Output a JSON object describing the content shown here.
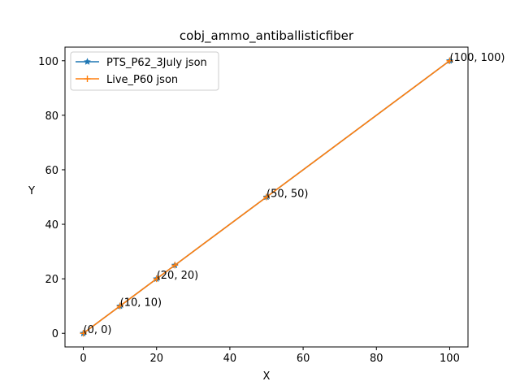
{
  "chart_data": {
    "type": "line",
    "title": "cobj_ammo_antiballisticfiber",
    "xlabel": "X",
    "ylabel": "Y",
    "xlim": [
      -5,
      105
    ],
    "ylim": [
      -5,
      105
    ],
    "xticks": [
      0,
      20,
      40,
      60,
      80,
      100
    ],
    "yticks": [
      0,
      20,
      40,
      60,
      80,
      100
    ],
    "grid": false,
    "legend_position": "upper-left",
    "series": [
      {
        "name": "PTS_P62_3July json",
        "color": "#1f77b4",
        "marker": "star",
        "points": [
          [
            0,
            0
          ],
          [
            10,
            10
          ],
          [
            20,
            20
          ],
          [
            25,
            25
          ],
          [
            50,
            50
          ],
          [
            100,
            100
          ]
        ]
      },
      {
        "name": "Live_P60 json",
        "color": "#ff7f0e",
        "marker": "plus",
        "points": [
          [
            0,
            0
          ],
          [
            10,
            10
          ],
          [
            20,
            20
          ],
          [
            25,
            25
          ],
          [
            50,
            50
          ],
          [
            100,
            100
          ]
        ]
      }
    ],
    "annotations": [
      {
        "text": "(0, 0)",
        "x": 0,
        "y": 0
      },
      {
        "text": "(10, 10)",
        "x": 10,
        "y": 10
      },
      {
        "text": "(20, 20)",
        "x": 20,
        "y": 20
      },
      {
        "text": "(50, 50)",
        "x": 50,
        "y": 50
      },
      {
        "text": "(100, 100)",
        "x": 100,
        "y": 100
      }
    ]
  }
}
